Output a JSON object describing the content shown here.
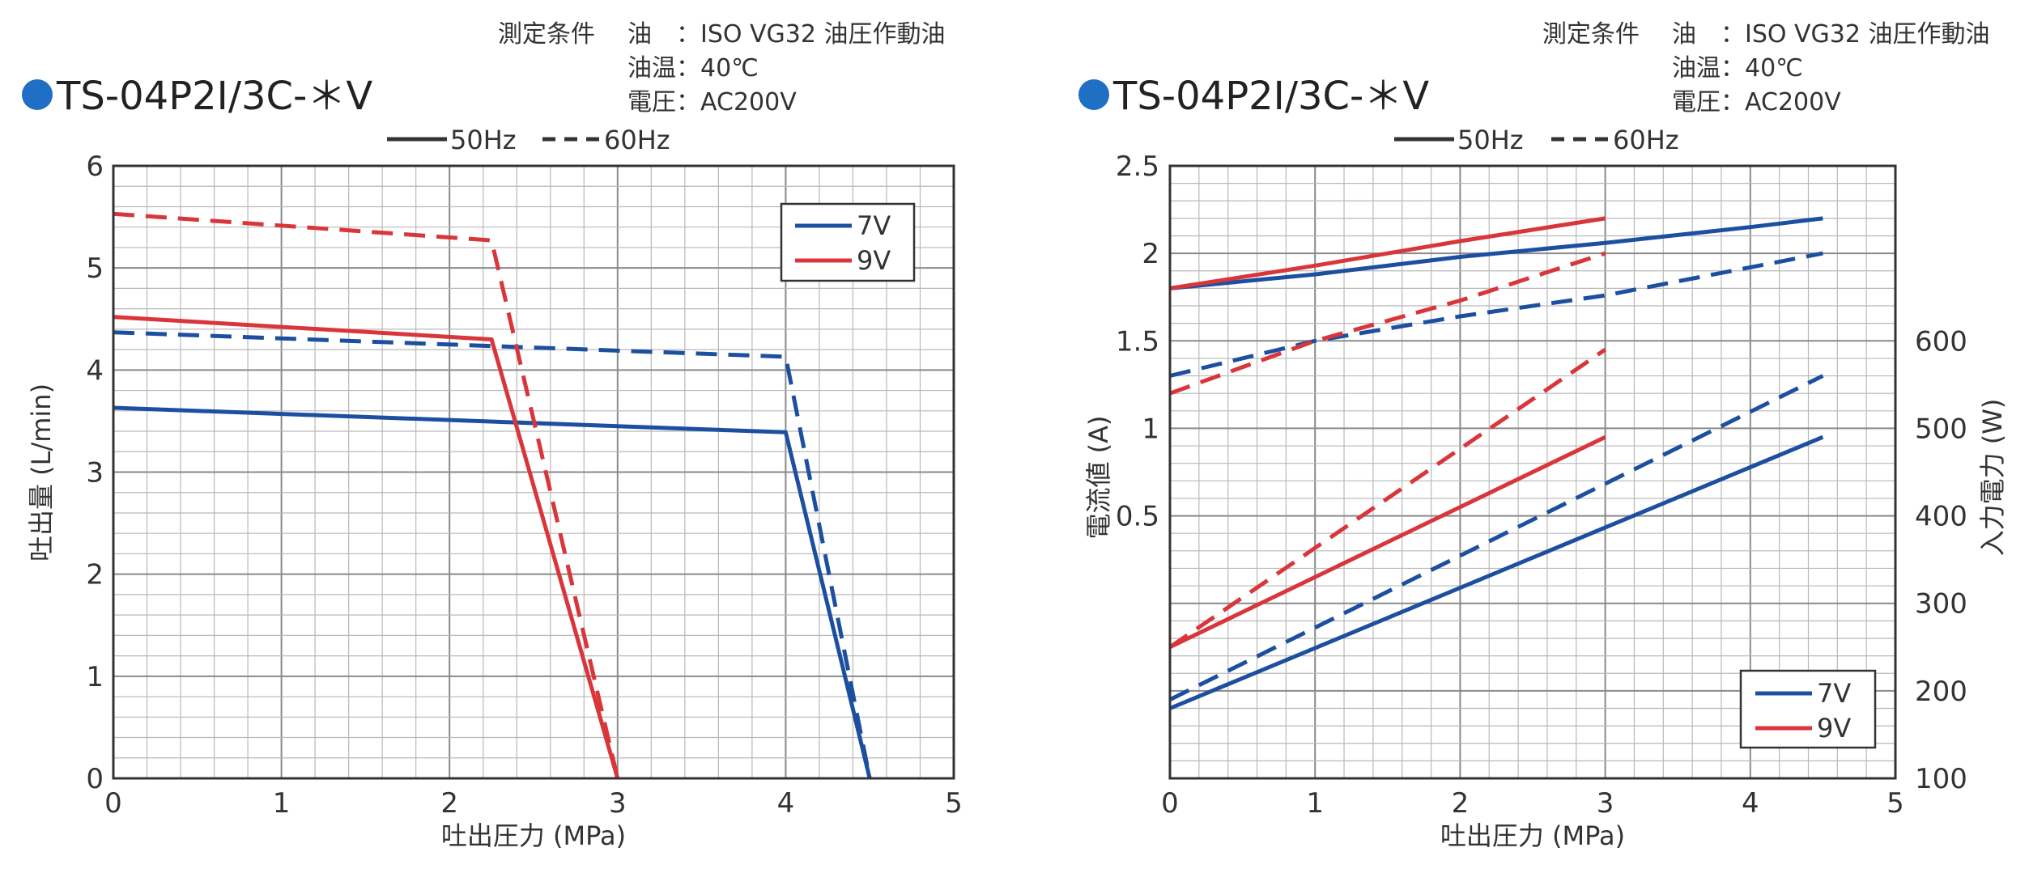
{
  "conditions": {
    "label": "測定条件",
    "oil_key": "油",
    "oil_value": "：ISO VG32 油圧作動油",
    "temp": "油温：40℃",
    "voltage": "電圧：AC200V"
  },
  "bullet_color": "#1f6fc4",
  "series_colors": {
    "7V": "#1d4fa0",
    "9V": "#d9363b"
  },
  "chart_data": [
    {
      "type": "line",
      "title": "TS-04P2I/3C-＊V",
      "xlabel": "吐出圧力 (MPa)",
      "ylabel": "吐出量 (L/min)",
      "xlim": [
        0,
        5
      ],
      "ylim": [
        0,
        6
      ],
      "xticks": [
        "0",
        "1",
        "2",
        "3",
        "4",
        "5"
      ],
      "yticks": [
        "0",
        "1",
        "2",
        "3",
        "4",
        "5",
        "6"
      ],
      "grid": true,
      "line_style_legend": {
        "solid": "50Hz",
        "dashed": "60Hz"
      },
      "legend": {
        "position": "top-right",
        "entries": [
          "7V",
          "9V"
        ]
      },
      "series": [
        {
          "name": "7V",
          "style": "solid",
          "x": [
            0,
            4,
            4.5
          ],
          "y": [
            3.63,
            3.39,
            0
          ]
        },
        {
          "name": "7V",
          "style": "dashed",
          "x": [
            0,
            4,
            4.5
          ],
          "y": [
            4.37,
            4.13,
            0
          ]
        },
        {
          "name": "9V",
          "style": "solid",
          "x": [
            0,
            2.25,
            3
          ],
          "y": [
            4.52,
            4.3,
            0
          ]
        },
        {
          "name": "9V",
          "style": "dashed",
          "x": [
            0,
            2.25,
            3
          ],
          "y": [
            5.53,
            5.27,
            0
          ]
        }
      ]
    },
    {
      "type": "line",
      "title": "TS-04P2I/3C-＊V",
      "xlabel": "吐出圧力 (MPa)",
      "ylabel": "電流値 (A)",
      "y2label": "入力電力 (W)",
      "xlim": [
        0,
        5
      ],
      "ylim": [
        -1,
        2.5
      ],
      "y2lim": [
        100,
        800
      ],
      "xticks": [
        "0",
        "1",
        "2",
        "3",
        "4",
        "5"
      ],
      "yticks": [
        "0.5",
        "1",
        "1.5",
        "2",
        "2.5"
      ],
      "y2ticks": [
        "100",
        "200",
        "300",
        "400",
        "500",
        "600"
      ],
      "grid": true,
      "line_style_legend": {
        "solid": "50Hz",
        "dashed": "60Hz"
      },
      "legend": {
        "position": "bottom-right",
        "entries": [
          "7V",
          "9V"
        ]
      },
      "series": [
        {
          "name": "7V",
          "measure": "current",
          "axis": "left",
          "style": "solid",
          "x": [
            0,
            1,
            2,
            3,
            4,
            4.5
          ],
          "y": [
            1.8,
            1.88,
            1.98,
            2.06,
            2.15,
            2.2
          ]
        },
        {
          "name": "7V",
          "measure": "current",
          "axis": "left",
          "style": "dashed",
          "x": [
            0,
            1,
            2,
            3,
            4,
            4.5
          ],
          "y": [
            1.3,
            1.5,
            1.64,
            1.76,
            1.92,
            2.0
          ]
        },
        {
          "name": "9V",
          "measure": "current",
          "axis": "left",
          "style": "solid",
          "x": [
            0,
            1,
            2,
            3
          ],
          "y": [
            1.8,
            1.93,
            2.07,
            2.2
          ]
        },
        {
          "name": "9V",
          "measure": "current",
          "axis": "left",
          "style": "dashed",
          "x": [
            0,
            1,
            2,
            3
          ],
          "y": [
            1.2,
            1.5,
            1.73,
            2.0
          ]
        },
        {
          "name": "7V",
          "measure": "power",
          "axis": "right",
          "style": "solid",
          "x": [
            0,
            4.5
          ],
          "y": [
            180,
            490
          ]
        },
        {
          "name": "7V",
          "measure": "power",
          "axis": "right",
          "style": "dashed",
          "x": [
            0,
            4.5
          ],
          "y": [
            190,
            560
          ]
        },
        {
          "name": "9V",
          "measure": "power",
          "axis": "right",
          "style": "solid",
          "x": [
            0,
            3
          ],
          "y": [
            250,
            490
          ]
        },
        {
          "name": "9V",
          "measure": "power",
          "axis": "right",
          "style": "dashed",
          "x": [
            0,
            3
          ],
          "y": [
            250,
            590
          ]
        }
      ]
    }
  ]
}
